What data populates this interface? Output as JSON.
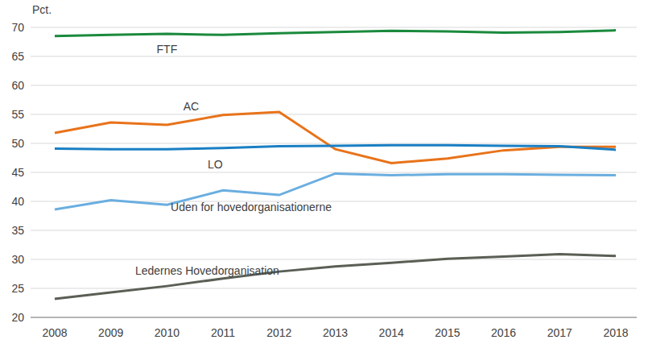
{
  "chart_data": {
    "type": "line",
    "y_label": "Pct.",
    "categories": [
      "2008",
      "2009",
      "2010",
      "2011",
      "2012",
      "2013",
      "2014",
      "2015",
      "2016",
      "2017",
      "2018"
    ],
    "series": [
      {
        "name": "FTF",
        "color": "#1b8a3d",
        "values": [
          68.5,
          68.7,
          68.9,
          68.7,
          69.0,
          69.2,
          69.4,
          69.3,
          69.1,
          69.2,
          69.5
        ]
      },
      {
        "name": "AC",
        "color": "#e8731a",
        "values": [
          51.8,
          53.6,
          53.2,
          54.9,
          55.4,
          49.0,
          46.6,
          47.4,
          48.8,
          49.4,
          49.4
        ]
      },
      {
        "name": "LO",
        "color": "#1a7fc4",
        "values": [
          49.1,
          49.0,
          49.0,
          49.2,
          49.5,
          49.6,
          49.7,
          49.7,
          49.6,
          49.5,
          48.9
        ]
      },
      {
        "name": "Uden for hovedorganisationerne",
        "color": "#6aaee0",
        "values": [
          38.6,
          40.2,
          39.4,
          41.9,
          41.1,
          44.8,
          44.5,
          44.7,
          44.7,
          44.6,
          44.5
        ]
      },
      {
        "name": "Ledernes Hovedorganisation",
        "color": "#5a5f55",
        "values": [
          23.2,
          24.3,
          25.4,
          26.7,
          27.9,
          28.8,
          29.4,
          30.1,
          30.5,
          30.9,
          30.6
        ]
      }
    ],
    "ylim": [
      20,
      70
    ],
    "yticks": [
      20,
      25,
      30,
      35,
      40,
      45,
      50,
      55,
      60,
      65,
      70
    ],
    "grid": true
  }
}
